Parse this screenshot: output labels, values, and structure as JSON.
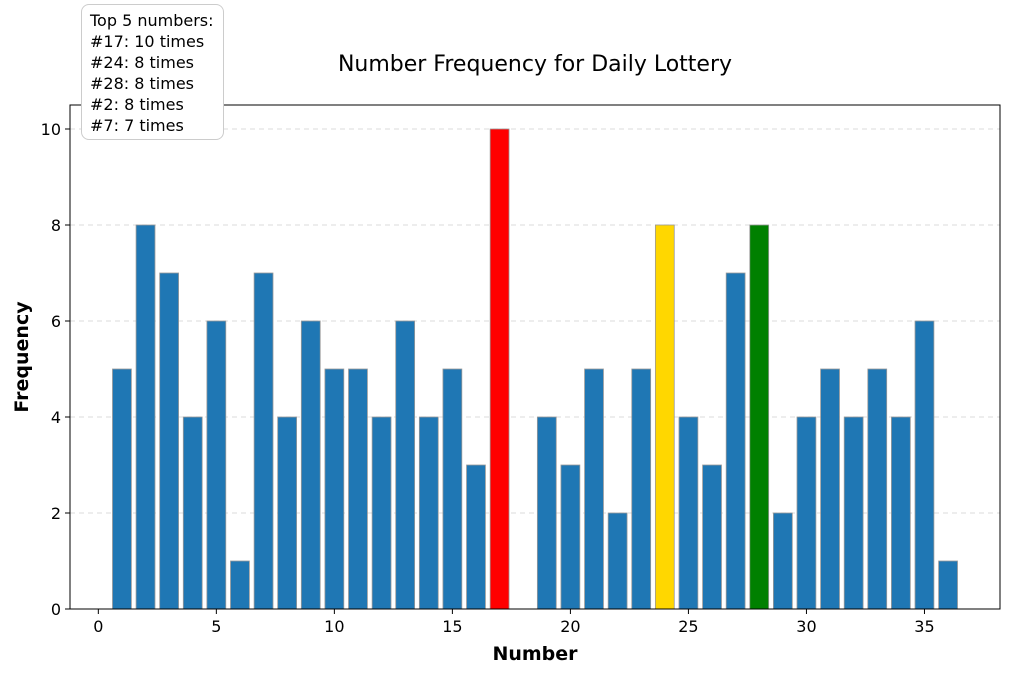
{
  "chart_data": {
    "type": "bar",
    "title": "Number Frequency for Daily Lottery",
    "xlabel": "Number",
    "ylabel": "Frequency",
    "x": [
      1,
      2,
      3,
      4,
      5,
      6,
      7,
      8,
      9,
      10,
      11,
      12,
      13,
      14,
      15,
      16,
      17,
      18,
      19,
      20,
      21,
      22,
      23,
      24,
      25,
      26,
      27,
      28,
      29,
      30,
      31,
      32,
      33,
      34,
      35,
      36
    ],
    "values": [
      5,
      8,
      7,
      4,
      6,
      1,
      7,
      4,
      6,
      5,
      5,
      4,
      6,
      4,
      5,
      3,
      10,
      0,
      4,
      3,
      5,
      2,
      5,
      8,
      4,
      3,
      7,
      8,
      2,
      4,
      5,
      4,
      5,
      4,
      6,
      1
    ],
    "xlim": [
      -1.2,
      38.2
    ],
    "ylim": [
      0,
      10.5
    ],
    "xticks": [
      0,
      5,
      10,
      15,
      20,
      25,
      30,
      35
    ],
    "yticks": [
      0,
      2,
      4,
      6,
      8,
      10
    ],
    "grid": "y-dashed",
    "default_color": "#1f77b4",
    "highlight_colors": {
      "17": "#ff0000",
      "24": "#ffd700",
      "28": "#008000"
    },
    "edge_color": "#999999",
    "annotation": {
      "heading": "Top 5 numbers:",
      "lines": [
        "#17: 10 times",
        "#24: 8 times",
        "#28: 8 times",
        "#2: 8 times",
        "#7: 7 times"
      ]
    }
  }
}
